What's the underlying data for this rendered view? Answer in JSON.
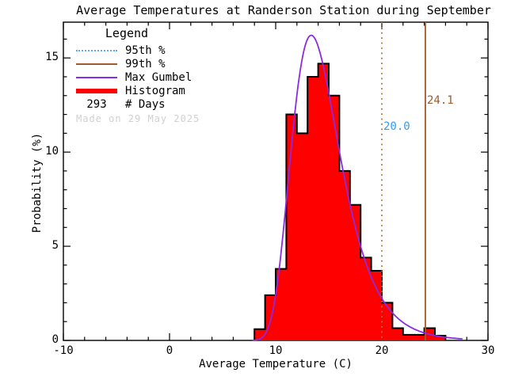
{
  "title": "Average Temperatures at Randerson Station during September",
  "colors": {
    "histogram_fill": "#ff0000",
    "histogram_outline": "#000000",
    "gumbel_curve": "#8a2be2",
    "p95_line": "#ab7a35",
    "p95_label_text": "#3399ff",
    "p95_legend_swatch": "#5ca8ff",
    "p99_line": "#a05a2d",
    "p99_label_text": "#a05a2d",
    "axis": "#000000",
    "made_on_text": "#d0d0d0"
  },
  "legend": {
    "title": "Legend",
    "items": [
      {
        "label": "95th %"
      },
      {
        "label": "99th %"
      },
      {
        "label": "Max Gumbel"
      },
      {
        "label": "Histogram"
      }
    ],
    "days_count": "293",
    "days_label": "# Days",
    "made_on": "Made on 29 May 2025"
  },
  "chart_data": {
    "type": "bar",
    "title": "Average Temperatures at Randerson Station during September",
    "xlabel": "Average Temperature (C)",
    "ylabel": "Probability (%)",
    "xlim": [
      -10,
      30
    ],
    "ylim": [
      0,
      16.9
    ],
    "x_major_ticks": [
      -10,
      0,
      10,
      20,
      30
    ],
    "x_minor_step": 2,
    "y_major_ticks": [
      0,
      5,
      10,
      15
    ],
    "y_minor_step": 1,
    "grid": "off",
    "legend_position": "top-left",
    "histogram": {
      "units": "percent probability per 1 C bin",
      "bin_start": 8,
      "bin_width": 1,
      "values": [
        0.6,
        2.4,
        3.8,
        12.0,
        11.0,
        14.0,
        14.7,
        13.0,
        9.0,
        7.2,
        4.4,
        3.7,
        2.0,
        0.65,
        0.3,
        0.3,
        0.65,
        0.25
      ]
    },
    "gumbel_fit": {
      "name": "Max Gumbel",
      "mu": 13.35,
      "beta": 2.27,
      "peak_percent": 16.2,
      "curve_range": [
        7.8,
        27.6
      ]
    },
    "percentiles": [
      {
        "name": "95th %",
        "value": 20.0,
        "label": "20.0",
        "line_style": "dotted"
      },
      {
        "name": "99th %",
        "value": 24.1,
        "label": "24.1",
        "line_style": "solid"
      }
    ],
    "n_days": 293
  }
}
